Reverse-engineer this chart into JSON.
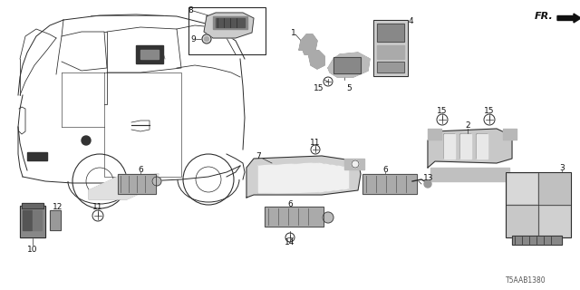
{
  "bg_color": "#ffffff",
  "part_number_text": "T5AAB1380",
  "fr_label": "FR.",
  "fig_width": 6.4,
  "fig_height": 3.2,
  "dpi": 100,
  "line_color": "#2a2a2a",
  "lw": 0.7
}
